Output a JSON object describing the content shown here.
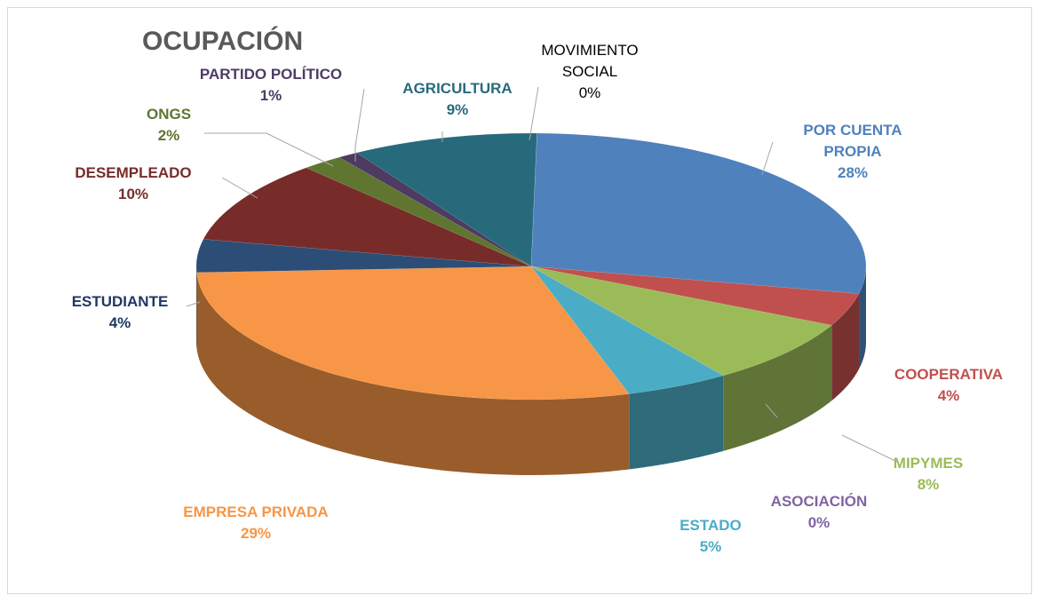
{
  "chart_data": {
    "type": "pie3d",
    "title": "OCUPACIÓN",
    "categories": [
      "POR CUENTA PROPIA",
      "COOPERATIVA",
      "MIPYMES",
      "ASOCIACIÓN",
      "ESTADO",
      "EMPRESA PRIVADA",
      "ESTUDIANTE",
      "DESEMPLEADO",
      "ONGS",
      "PARTIDO POLÍTICO",
      "AGRICULTURA",
      "MOVIMIENTO SOCIAL"
    ],
    "values": [
      28,
      4,
      8,
      0,
      5,
      29,
      4,
      10,
      2,
      1,
      9,
      0
    ],
    "value_labels": [
      "28%",
      "4%",
      "8%",
      "0%",
      "5%",
      "29%",
      "4%",
      "10%",
      "2%",
      "1%",
      "9%",
      "0%"
    ],
    "colors": [
      "#4f81bd",
      "#c0504d",
      "#9bbb59",
      "#8064a2",
      "#4bacc6",
      "#f79646",
      "#2c4d75",
      "#772c2a",
      "#5f7530",
      "#4d3b62",
      "#276a7c",
      "#f79646"
    ]
  }
}
